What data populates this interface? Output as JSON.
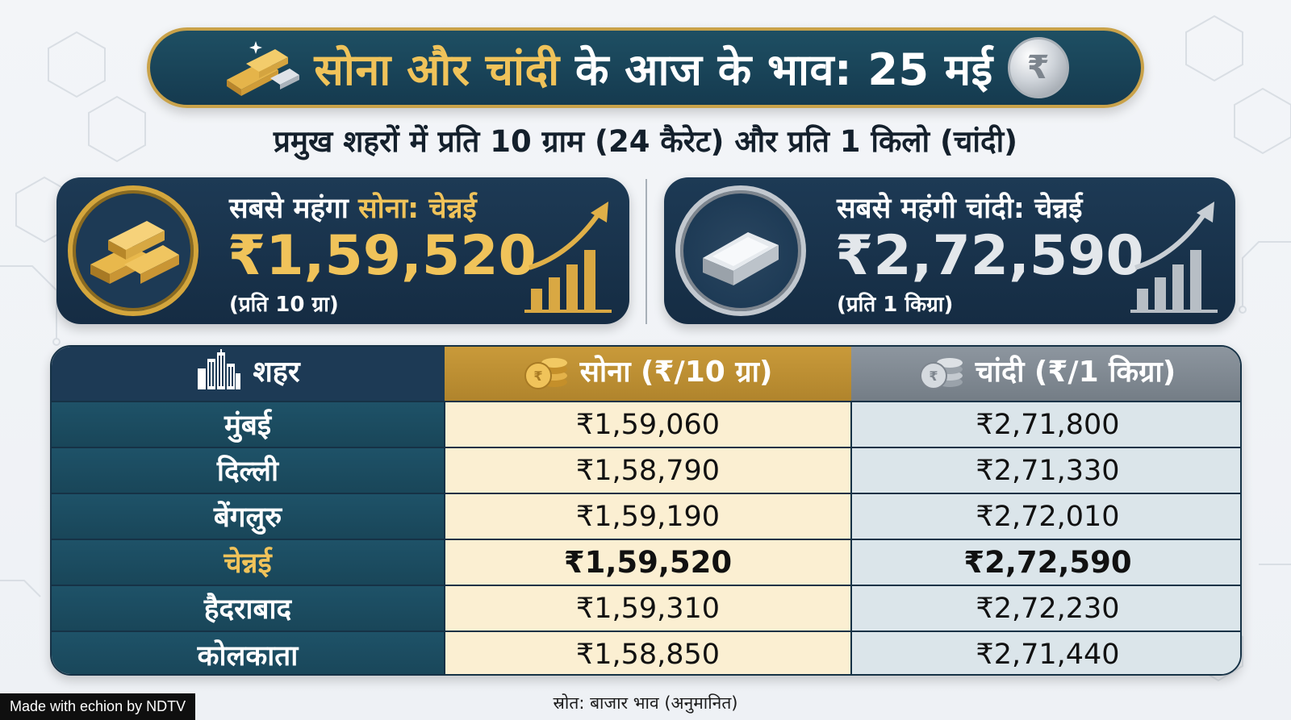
{
  "header": {
    "title_gold": "सोना और चांदी",
    "title_white": "के आज के भाव: 25 मई",
    "coin_symbol": "₹",
    "subtitle": "प्रमुख शहरों में प्रति 10 ग्राम (24 कैरेट) और प्रति 1 किलो (चांदी)"
  },
  "gold_card": {
    "label_prefix": "सबसे महंगा",
    "label_accent": "सोना:",
    "label_city": "चेन्नई",
    "price": "₹1,59,520",
    "unit": "(प्रति 10 ग्रा)"
  },
  "silver_card": {
    "label": "सबसे महंगी चांदी: चेन्नई",
    "price": "₹2,72,590",
    "unit": "(प्रति 1 किग्रा)"
  },
  "table": {
    "headers": {
      "city": "शहर",
      "gold": "सोना (₹/10 ग्रा)",
      "silver": "चांदी (₹/1 किग्रा)"
    },
    "rows": [
      {
        "city": "मुंबई",
        "gold": "₹1,59,060",
        "silver": "₹2,71,800"
      },
      {
        "city": "दिल्ली",
        "gold": "₹1,58,790",
        "silver": "₹2,71,330"
      },
      {
        "city": "बेंगलुरु",
        "gold": "₹1,59,190",
        "silver": "₹2,72,010"
      },
      {
        "city": "चेन्नई",
        "gold": "₹1,59,520",
        "silver": "₹2,72,590",
        "highlight": true
      },
      {
        "city": "हैदराबाद",
        "gold": "₹1,59,310",
        "silver": "₹2,72,230"
      },
      {
        "city": "कोलकाता",
        "gold": "₹1,58,850",
        "silver": "₹2,71,440"
      }
    ]
  },
  "footer": {
    "source": "स्रोत: बाजार भाव (अनुमानित)",
    "watermark": "Made with echion by NDTV"
  },
  "colors": {
    "navy": "#1d3a55",
    "teal": "#1e5268",
    "gold": "#f0c35a",
    "gold_header": "#c99a3a",
    "silver_header": "#8d969f"
  }
}
